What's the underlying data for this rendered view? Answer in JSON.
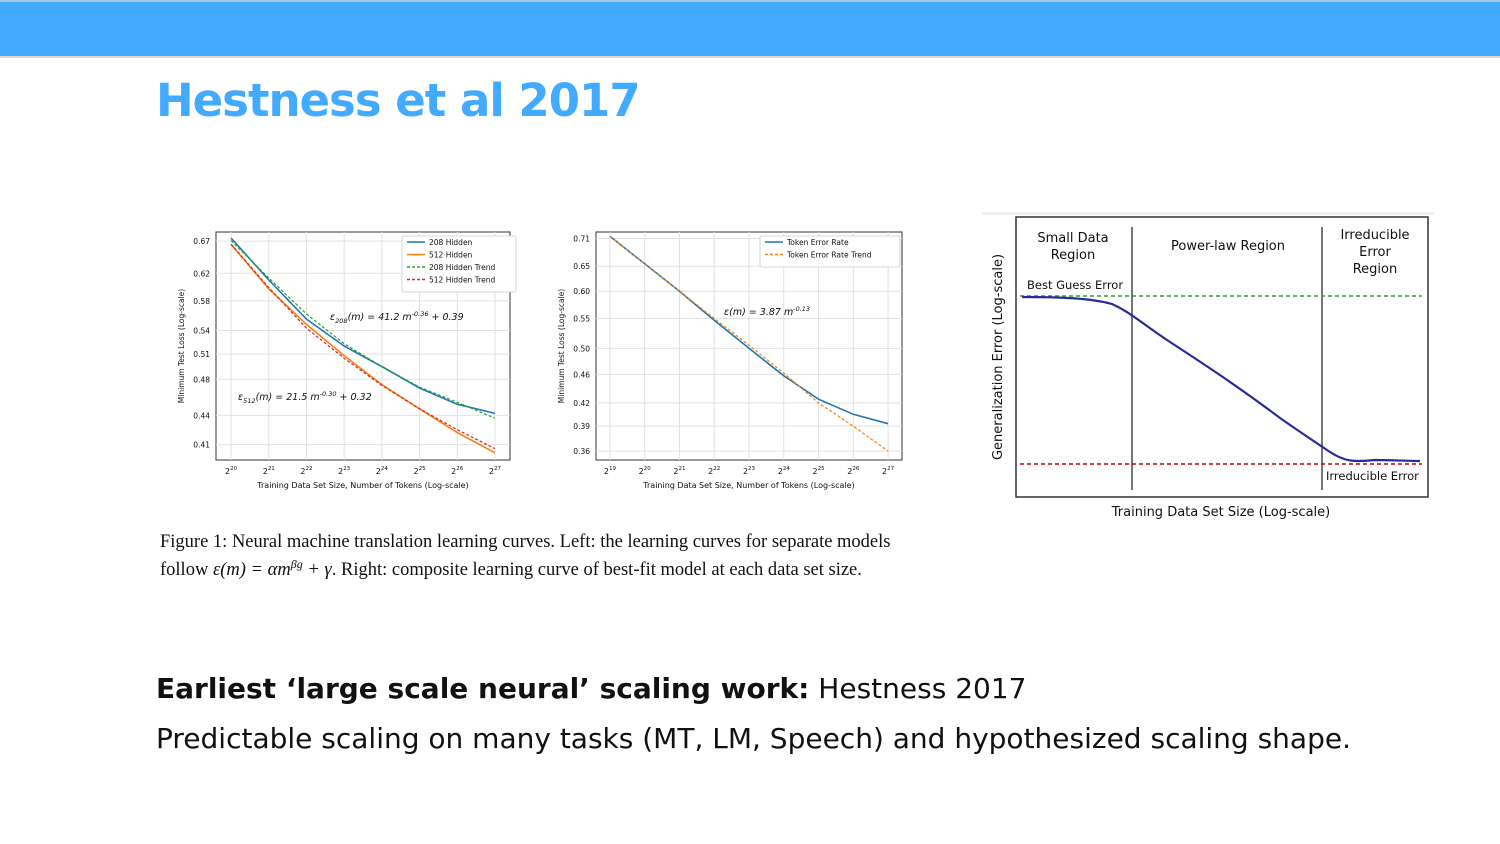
{
  "slide": {
    "title": "Hestness et al 2017",
    "bold_lead": "Earliest ‘large scale neural’ scaling work:",
    "lead_rest": " Hestness 2017",
    "line2": "Predictable scaling on many tasks (MT, LM, Speech) and hypothesized scaling shape."
  },
  "caption": {
    "line1": "Figure 1: Neural machine translation learning curves. Left: the learning curves for separate models",
    "line2_pre": "follow ",
    "line2_math": "ε(m) = αm",
    "line2_sup": "βg",
    "line2_math_tail": " + γ",
    "line2_post": ". Right: composite learning curve of best-fit model at each data set size."
  },
  "colors": {
    "accent": "#42aaff",
    "blue": "#1f77b4",
    "orange": "#ff7f0e",
    "green": "#2ca02c",
    "red": "#d62728",
    "navy": "#2a2a9a"
  },
  "chart_data": [
    {
      "type": "line",
      "xlabel": "Training Data Set Size, Number of Tokens (Log-scale)",
      "ylabel": "Minimum Test Loss (Log-scale)",
      "x_ticks": [
        "20",
        "21",
        "22",
        "23",
        "24",
        "25",
        "26",
        "27"
      ],
      "y_ticks": [
        "0.67",
        "0.62",
        "0.58",
        "0.54",
        "0.51",
        "0.48",
        "0.44",
        "0.41"
      ],
      "x_log2": [
        20,
        21,
        22,
        23,
        24,
        25,
        26,
        27
      ],
      "series": [
        {
          "name": "208 Hidden",
          "style": "solid",
          "color": "#1f77b4",
          "values": [
            0.675,
            0.61,
            0.555,
            0.52,
            0.495,
            0.47,
            0.452,
            0.442
          ]
        },
        {
          "name": "512 Hidden",
          "style": "solid",
          "color": "#ff7f0e",
          "values": [
            0.665,
            0.597,
            0.548,
            0.508,
            0.474,
            0.447,
            0.422,
            0.402
          ]
        },
        {
          "name": "208 Hidden Trend",
          "style": "dashed",
          "color": "#2ca02c",
          "values": [
            0.671,
            0.613,
            0.562,
            0.523,
            0.495,
            0.471,
            0.454,
            0.437
          ]
        },
        {
          "name": "512 Hidden Trend",
          "style": "dashed",
          "color": "#d62728",
          "values": [
            0.665,
            0.599,
            0.543,
            0.505,
            0.473,
            0.447,
            0.425,
            0.406
          ]
        }
      ],
      "annotations": [
        {
          "pre": "ε",
          "sub": "208",
          "mid": "(m) = 41.2 m",
          "sup": "-0.36",
          "post": " + 0.39"
        },
        {
          "pre": "ε",
          "sub": "512",
          "mid": "(m) = 21.5 m",
          "sup": "-0.30",
          "post": " + 0.32"
        }
      ],
      "legend": "top-right",
      "grid": true
    },
    {
      "type": "line",
      "xlabel": "Training Data Set Size, Number of Tokens (Log-scale)",
      "ylabel": "Minimum Test Loss (Log-scale)",
      "x_ticks": [
        "19",
        "20",
        "21",
        "22",
        "23",
        "24",
        "25",
        "26",
        "27"
      ],
      "y_ticks": [
        "0.71",
        "0.65",
        "0.60",
        "0.55",
        "0.50",
        "0.46",
        "0.42",
        "0.39",
        "0.36"
      ],
      "x_log2": [
        19,
        20,
        21,
        22,
        23,
        24,
        25,
        26,
        27
      ],
      "series": [
        {
          "name": "Token Error Rate",
          "style": "solid",
          "color": "#1f77b4",
          "values": [
            0.715,
            0.655,
            0.6,
            0.547,
            0.5,
            0.458,
            0.425,
            0.405,
            0.393
          ]
        },
        {
          "name": "Token Error Rate Trend",
          "style": "dashed",
          "color": "#ff7f0e",
          "values": [
            0.715,
            0.655,
            0.6,
            0.55,
            0.505,
            0.462,
            0.42,
            0.39,
            0.36
          ]
        }
      ],
      "annotations": [
        {
          "pre": "ε",
          "sub": "",
          "mid": "(m) = 3.87 m",
          "sup": "-0.13",
          "post": ""
        }
      ],
      "legend": "top-right",
      "grid": true
    }
  ],
  "diagram": {
    "ylabel": "Generalization Error (Log-scale)",
    "xlabel": "Training Data Set Size (Log-scale)",
    "regions": [
      "Small Data",
      "Region",
      "Power-law Region",
      "Irreducible",
      "Error",
      "Region"
    ],
    "best_guess": "Best Guess Error",
    "irreducible": "Irreducible Error"
  }
}
